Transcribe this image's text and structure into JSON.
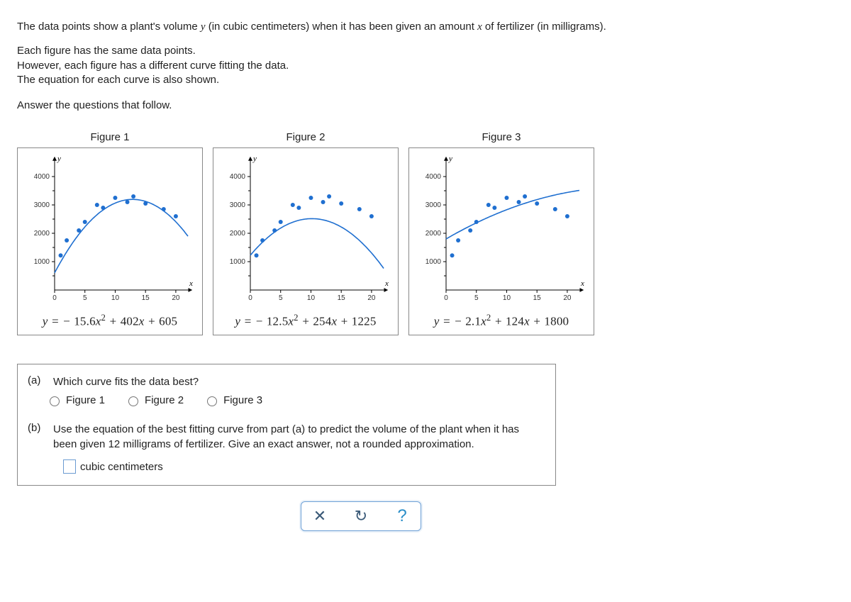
{
  "intro": {
    "line1_pre": "The data points show a plant's volume ",
    "line1_y": "y",
    "line1_mid": " (in cubic centimeters) when it has been given an amount ",
    "line1_x": "x",
    "line1_post": " of fertilizer (in milligrams).",
    "line2": "Each figure has the same data points.",
    "line3": "However, each figure has a different curve fitting the data.",
    "line4": "The equation for each curve is also shown.",
    "line5": "Answer the questions that follow."
  },
  "chart_common": {
    "xlim": [
      0,
      22
    ],
    "ylim": [
      0,
      4500
    ],
    "xticks": [
      0,
      5,
      10,
      15,
      20
    ],
    "yticks": [
      1000,
      2000,
      3000,
      4000
    ],
    "tick_font_size": 10,
    "axis_label_x": "x",
    "axis_label_y": "y",
    "point_color": "#1f6fd0",
    "curve_color": "#1f6fd0",
    "axis_color": "#000000",
    "data_points": [
      [
        1,
        1220
      ],
      [
        2,
        1750
      ],
      [
        4,
        2100
      ],
      [
        5,
        2400
      ],
      [
        7,
        3000
      ],
      [
        8,
        2900
      ],
      [
        10,
        3250
      ],
      [
        12,
        3100
      ],
      [
        13,
        3300
      ],
      [
        15,
        3050
      ],
      [
        18,
        2850
      ],
      [
        20,
        2600
      ]
    ]
  },
  "figures": [
    {
      "title": "Figure 1",
      "eqn_html": "y = − <span class='num'>15.6</span>x<sup>2</sup> + <span class='num'>402</span>x + <span class='num'>605</span>",
      "curve": {
        "a": -15.6,
        "b": 402,
        "c": 605
      }
    },
    {
      "title": "Figure 2",
      "eqn_html": "y = − <span class='num'>12.5</span>x<sup>2</sup> + <span class='num'>254</span>x + <span class='num'>1225</span>",
      "curve": {
        "a": -12.5,
        "b": 254,
        "c": 1225
      }
    },
    {
      "title": "Figure 3",
      "eqn_html": "y = − <span class='num'>2.1</span>x<sup>2</sup> + <span class='num'>124</span>x + <span class='num'>1800</span>",
      "curve": {
        "a": -2.1,
        "b": 124,
        "c": 1800
      }
    }
  ],
  "question": {
    "a_label": "(a)",
    "a_text": "Which curve fits the data best?",
    "options": [
      "Figure 1",
      "Figure 2",
      "Figure 3"
    ],
    "b_label": "(b)",
    "b_text_1": "Use the equation of the best fitting curve from part (a) to predict the volume of the plant when it has been given ",
    "b_num": "12",
    "b_text_2": " milligrams of fertilizer. Give an exact answer, not a rounded approximation.",
    "answer_unit": "cubic centimeters"
  },
  "toolbar": {
    "close": "✕",
    "reset": "↻",
    "help": "?"
  }
}
